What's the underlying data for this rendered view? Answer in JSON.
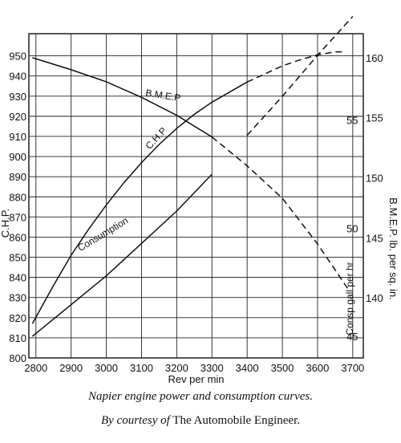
{
  "chart_data": {
    "type": "line",
    "xlabel": "Rev per min",
    "xlim": [
      2780,
      3730
    ],
    "x_ticks": [
      2800,
      2900,
      3000,
      3100,
      3200,
      3300,
      3400,
      3500,
      3600,
      3700
    ],
    "left_axis": {
      "label": "C.H.P.",
      "lim": [
        800,
        961
      ],
      "ticks": [
        800,
        810,
        820,
        830,
        840,
        850,
        860,
        870,
        880,
        890,
        900,
        910,
        920,
        930,
        940,
        950
      ]
    },
    "bmep_axis": {
      "label": "B.M.E.P.  lb. per sq. in.",
      "lim": [
        135,
        162
      ],
      "ticks": [
        140,
        145,
        150,
        155,
        160
      ]
    },
    "consumption_axis": {
      "label": "Consp gall per hr",
      "lim": [
        44,
        59
      ],
      "ticks": [
        45,
        50,
        55
      ]
    },
    "grid": true,
    "series": [
      {
        "name": "C.H.P",
        "axis": "left",
        "style": "solid-then-dashed",
        "dash_from": 3400,
        "x": [
          2790,
          2850,
          2900,
          2950,
          3000,
          3050,
          3100,
          3150,
          3200,
          3250,
          3300,
          3350,
          3400,
          3450,
          3500,
          3550,
          3600,
          3650,
          3680
        ],
        "y": [
          817,
          836,
          851,
          864,
          876,
          887,
          897,
          906,
          914,
          921,
          927,
          932,
          937,
          941,
          945,
          948,
          950.5,
          952,
          952
        ]
      },
      {
        "name": "B.M.E.P",
        "axis": "bmep",
        "style": "solid-then-dashed",
        "dash_from": 3300,
        "x": [
          2790,
          2900,
          3000,
          3100,
          3200,
          3300,
          3400,
          3500,
          3600,
          3690
        ],
        "y": [
          160,
          159,
          158,
          156.7,
          155.2,
          153.4,
          151,
          148.3,
          144.5,
          140.6
        ]
      },
      {
        "name": "Consumption",
        "axis": "consumption",
        "style": "solid-then-dashed",
        "dash_from": 3330,
        "x": [
          2790,
          3000,
          3100,
          3200,
          3300,
          3400,
          3500,
          3600,
          3700
        ],
        "y": [
          45,
          47.8,
          49.3,
          50.8,
          52.5,
          54.3,
          56.1,
          58,
          59.8
        ]
      }
    ]
  },
  "caption": {
    "line1": "Napier engine power and consumption curves.",
    "prefix": "By courtesy of",
    "source": "The Automobile Engineer."
  }
}
